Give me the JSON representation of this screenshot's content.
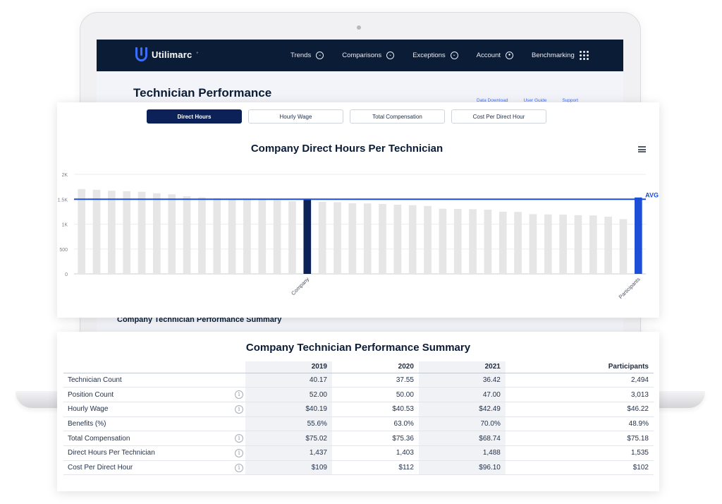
{
  "app": {
    "name": "Utilimarc",
    "trademark": "°"
  },
  "nav": {
    "items": [
      {
        "label": "Trends",
        "icon": "chevron-down-circle-icon"
      },
      {
        "label": "Comparisons",
        "icon": "chevron-down-circle-icon"
      },
      {
        "label": "Exceptions",
        "icon": "chevron-down-circle-icon"
      },
      {
        "label": "Account",
        "icon": "user-circle-icon"
      },
      {
        "label": "Benchmarking",
        "icon": "grid-dots-icon"
      }
    ]
  },
  "page": {
    "title": "Technician Performance",
    "links": [
      "Data Download",
      "User Guide",
      "Support"
    ],
    "behind_section_title": "Company Technician Performance Summary"
  },
  "tabs": {
    "items": [
      "Direct Hours",
      "Hourly Wage",
      "Total Compensation",
      "Cost Per Direct Hour"
    ],
    "active": "Direct Hours"
  },
  "chart_data": {
    "type": "bar",
    "title": "Company Direct Hours Per Technician",
    "xlabel": "",
    "ylabel": "",
    "ylim": [
      0,
      2000
    ],
    "y_ticks": [
      "0",
      "500",
      "1K",
      "1.5K",
      "2K"
    ],
    "y_tick_values": [
      0,
      500,
      1000,
      1500,
      2000
    ],
    "categories_labeled": [
      "Company",
      "Participants"
    ],
    "company_index": 15,
    "participants_index": 37,
    "values": [
      1705,
      1690,
      1670,
      1660,
      1650,
      1620,
      1600,
      1560,
      1540,
      1520,
      1510,
      1500,
      1490,
      1480,
      1460,
      1488,
      1450,
      1440,
      1420,
      1415,
      1405,
      1390,
      1380,
      1365,
      1310,
      1305,
      1300,
      1290,
      1250,
      1245,
      1200,
      1195,
      1190,
      1180,
      1175,
      1150,
      1100,
      1535
    ],
    "average": {
      "label": "AVG",
      "value": 1500
    },
    "colors": {
      "bar": "#e6e6e6",
      "company": "#0b2158",
      "participants": "#1d4ed8",
      "avg_line": "#1d4ed8"
    },
    "grid": true
  },
  "summary": {
    "title": "Company Technician Performance Summary",
    "columns": [
      "2019",
      "2020",
      "2021",
      "Participants"
    ],
    "rows": [
      {
        "label": "Technician Count",
        "info": false,
        "values": [
          "40.17",
          "37.55",
          "36.42",
          "2,494"
        ]
      },
      {
        "label": "Position Count",
        "info": true,
        "values": [
          "52.00",
          "50.00",
          "47.00",
          "3,013"
        ]
      },
      {
        "label": "Hourly Wage",
        "info": true,
        "values": [
          "$40.19",
          "$40.53",
          "$42.49",
          "$46.22"
        ]
      },
      {
        "label": "Benefits (%)",
        "info": false,
        "values": [
          "55.6%",
          "63.0%",
          "70.0%",
          "48.9%"
        ]
      },
      {
        "label": "Total Compensation",
        "info": true,
        "values": [
          "$75.02",
          "$75.36",
          "$68.74",
          "$75.18"
        ]
      },
      {
        "label": "Direct Hours Per Technician",
        "info": true,
        "values": [
          "1,437",
          "1,403",
          "1,488",
          "1,535"
        ]
      },
      {
        "label": "Cost Per Direct Hour",
        "info": true,
        "values": [
          "$109",
          "$112",
          "$96.10",
          "$102"
        ]
      }
    ],
    "info_icon_glyph": "i"
  }
}
